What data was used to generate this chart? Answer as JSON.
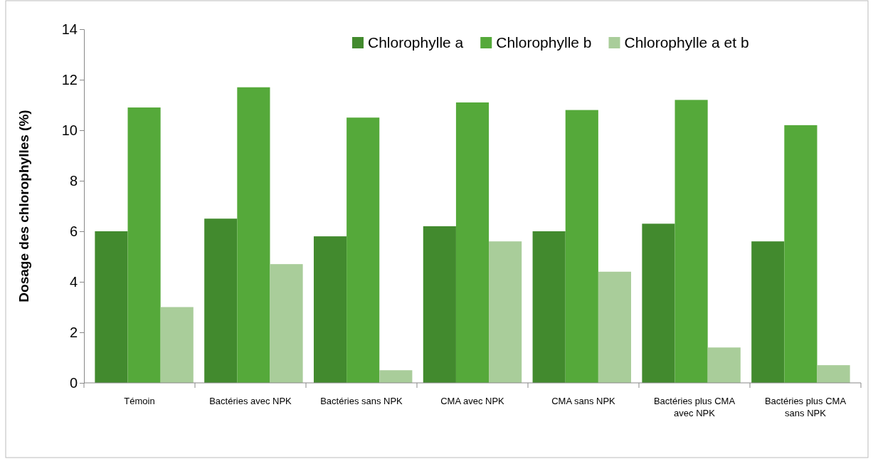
{
  "chart_data": {
    "type": "bar",
    "ylabel": "Dosage des chlorophylles (%)",
    "categories": [
      "Témoin",
      "Bactéries avec NPK",
      "Bactéries sans NPK",
      "CMA avec NPK",
      "CMA sans NPK",
      "Bactéries plus CMA avec NPK",
      "Bactéries plus CMA sans NPK"
    ],
    "series": [
      {
        "name": "Chlorophylle a",
        "color": "#428a2e",
        "values": [
          6.0,
          6.5,
          5.8,
          6.2,
          6.0,
          6.3,
          5.6
        ]
      },
      {
        "name": "Chlorophylle b",
        "color": "#55a93a",
        "values": [
          10.9,
          11.7,
          10.5,
          11.1,
          10.8,
          11.2,
          10.2
        ]
      },
      {
        "name": "Chlorophylle a et b",
        "color": "#a9cd9a",
        "values": [
          3.0,
          4.7,
          0.5,
          5.6,
          4.4,
          1.4,
          0.7
        ]
      }
    ],
    "ylim": [
      0,
      14
    ],
    "yticks": [
      0,
      2,
      4,
      6,
      8,
      10,
      12,
      14
    ],
    "grid": false,
    "legend": "top right"
  }
}
